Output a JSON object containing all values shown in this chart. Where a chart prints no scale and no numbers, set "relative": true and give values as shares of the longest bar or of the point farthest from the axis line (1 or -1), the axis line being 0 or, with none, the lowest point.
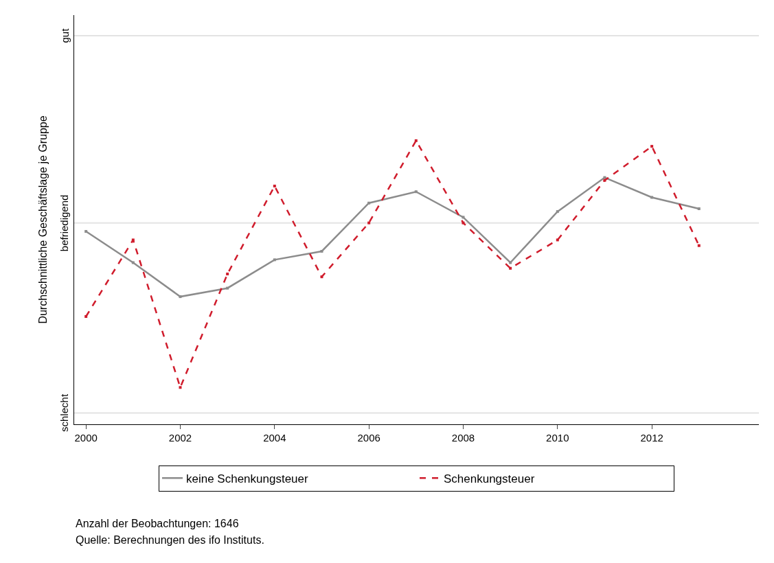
{
  "chart_data": {
    "type": "line",
    "ylabel": "Durchschnittliche Geschäftslage je Gruppe",
    "relative": true,
    "x": [
      2000,
      2001,
      2002,
      2003,
      2004,
      2005,
      2006,
      2007,
      2008,
      2009,
      2010,
      2011,
      2012,
      2013
    ],
    "series": [
      {
        "name": "keine Schenkungsteuer",
        "color": "#8c8c8c",
        "line_style": "solid",
        "values": [
          0.68,
          0.57,
          0.45,
          0.48,
          0.58,
          0.61,
          0.78,
          0.82,
          0.73,
          0.57,
          0.75,
          0.87,
          0.8,
          0.76
        ]
      },
      {
        "name": "Schenkungsteuer",
        "color": "#d01c2c",
        "line_style": "dashed",
        "values": [
          0.38,
          0.65,
          0.13,
          0.53,
          0.84,
          0.52,
          0.71,
          1.0,
          0.71,
          0.55,
          0.65,
          0.86,
          0.98,
          0.63
        ]
      }
    ],
    "marker": "square",
    "xlim": [
      1999.75,
      2014.27
    ],
    "xticks": [
      2000,
      2002,
      2004,
      2006,
      2008,
      2010,
      2012
    ],
    "ref_lines": [
      {
        "axis": "y",
        "value": 1.37,
        "label": "gut",
        "color": "#e3e3e3"
      },
      {
        "axis": "y",
        "value": 0.71,
        "label": "befriedigend",
        "color": "#e3e3e3"
      },
      {
        "axis": "y",
        "value": 0.04,
        "label": "schlecht",
        "color": "#e3e3e3"
      }
    ],
    "legend": "bottom",
    "annotations": [
      "Anzahl der Beobachtungen: 1646",
      "Quelle: Berechnungen des ifo Instituts."
    ]
  }
}
